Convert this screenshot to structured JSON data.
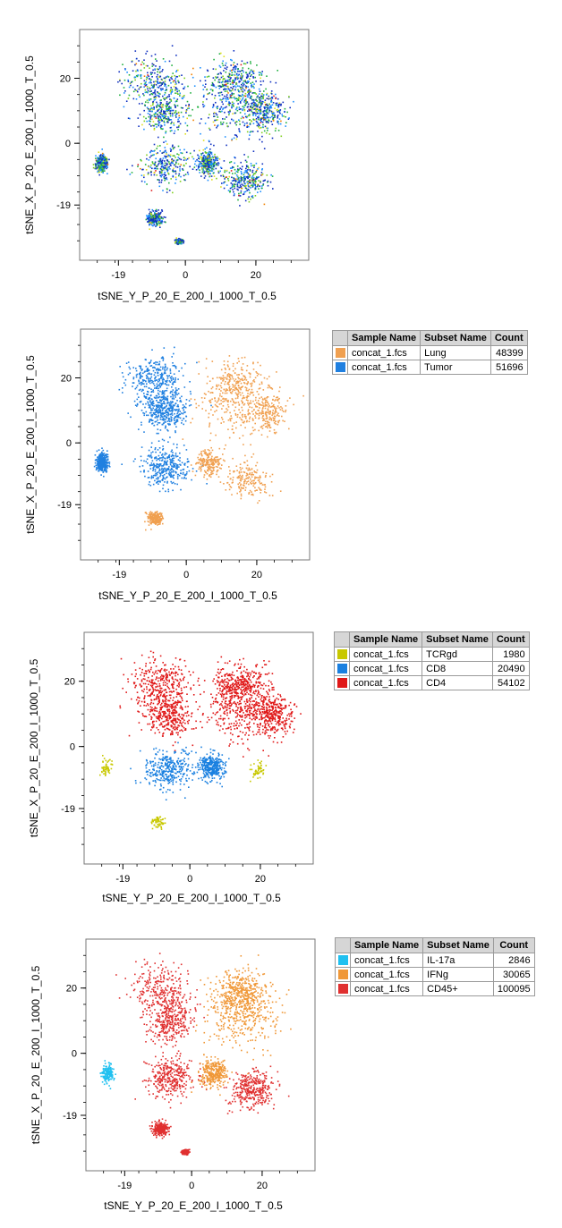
{
  "chart_data": [
    {
      "type": "scatter",
      "title": "",
      "coloring": "density heatmap",
      "xlabel": "tSNE_Y_P_20_E_200_I_1000_T_0.5",
      "ylabel": "tSNE_X_P_20_E_200_I_1000_T_0.5",
      "xticks": [
        "-19",
        "0",
        "20"
      ],
      "yticks": [
        "20",
        "0",
        "-19"
      ],
      "xlim": [
        -30,
        35
      ],
      "ylim": [
        -36,
        35
      ],
      "density_colors": [
        "#1030c0",
        "#1e90ff",
        "#20b040",
        "#80d020",
        "#e0e020",
        "#f08000",
        "#e02020"
      ],
      "legend": null
    },
    {
      "type": "scatter",
      "title": "",
      "xlabel": "tSNE_Y_P_20_E_200_I_1000_T_0.5",
      "ylabel": "tSNE_X_P_20_E_200_I_1000_T_0.5",
      "xticks": [
        "-19",
        "0",
        "20"
      ],
      "yticks": [
        "20",
        "0",
        "-19"
      ],
      "xlim": [
        -30,
        35
      ],
      "ylim": [
        -36,
        35
      ],
      "legend": {
        "headers": [
          "Sample Name",
          "Subset Name",
          "Count"
        ],
        "rows": [
          {
            "color": "#f0a050",
            "sample": "concat_1.fcs",
            "subset": "Lung",
            "count": 48399
          },
          {
            "color": "#2080e0",
            "sample": "concat_1.fcs",
            "subset": "Tumor",
            "count": 51696
          }
        ]
      }
    },
    {
      "type": "scatter",
      "title": "",
      "xlabel": "tSNE_Y_P_20_E_200_I_1000_T_0.5",
      "ylabel": "tSNE_X_P_20_E_200_I_1000_T_0.5",
      "xticks": [
        "-19",
        "0",
        "20"
      ],
      "yticks": [
        "20",
        "0",
        "-19"
      ],
      "xlim": [
        -30,
        35
      ],
      "ylim": [
        -36,
        35
      ],
      "legend": {
        "headers": [
          "Sample Name",
          "Subset Name",
          "Count"
        ],
        "rows": [
          {
            "color": "#c8c800",
            "sample": "concat_1.fcs",
            "subset": "TCRgd",
            "count": 1980
          },
          {
            "color": "#1a80e0",
            "sample": "concat_1.fcs",
            "subset": "CD8",
            "count": 20490
          },
          {
            "color": "#e01818",
            "sample": "concat_1.fcs",
            "subset": "CD4",
            "count": 54102
          }
        ]
      }
    },
    {
      "type": "scatter",
      "title": "",
      "xlabel": "tSNE_Y_P_20_E_200_I_1000_T_0.5",
      "ylabel": "tSNE_X_P_20_E_200_I_1000_T_0.5",
      "xticks": [
        "-19",
        "0",
        "20"
      ],
      "yticks": [
        "20",
        "0",
        "-19"
      ],
      "xlim": [
        -30,
        35
      ],
      "ylim": [
        -36,
        35
      ],
      "legend": {
        "headers": [
          "Sample Name",
          "Subset Name",
          "Count"
        ],
        "rows": [
          {
            "color": "#20c0f0",
            "sample": "concat_1.fcs",
            "subset": "IL-17a",
            "count": 2846
          },
          {
            "color": "#f09838",
            "sample": "concat_1.fcs",
            "subset": "IFNg",
            "count": 30065
          },
          {
            "color": "#e03030",
            "sample": "concat_1.fcs",
            "subset": "CD45+",
            "count": 100095
          }
        ]
      }
    }
  ]
}
